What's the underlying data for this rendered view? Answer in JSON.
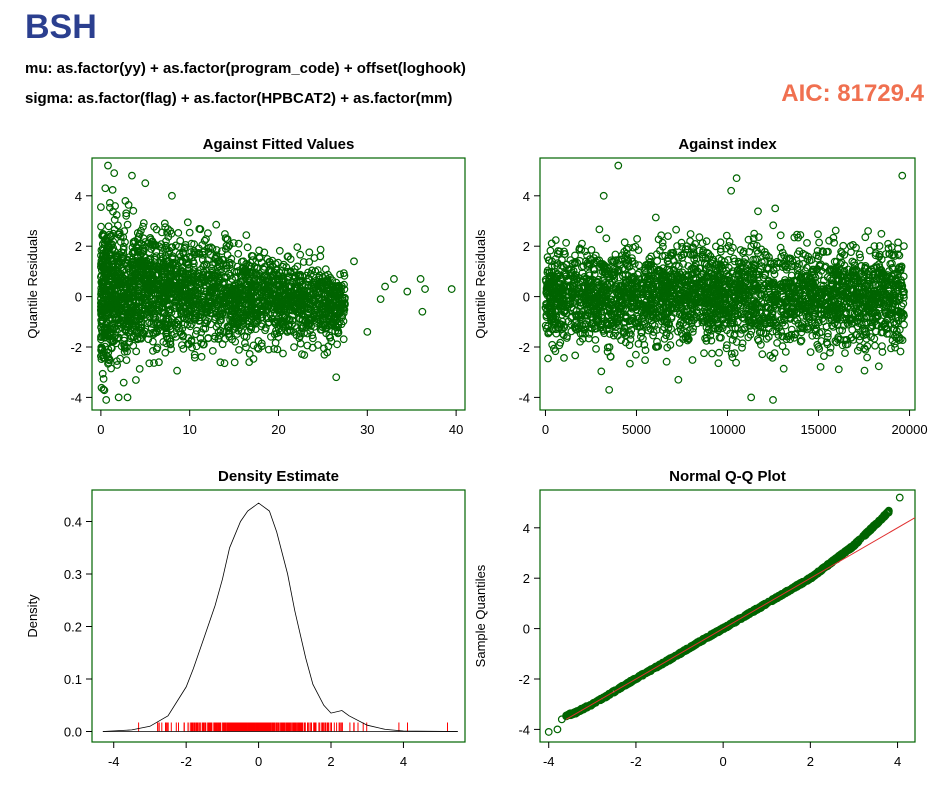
{
  "header": {
    "title": "BSH",
    "mu_formula": "mu: as.factor(yy) + as.factor(program_code) + offset(loghook)",
    "sigma_formula": "sigma: as.factor(flag) + as.factor(HPBCAT2) + as.factor(mm)",
    "aic_label": "AIC: 81729.4"
  },
  "colors": {
    "points": "#006400",
    "rug": "#ff0000",
    "qqline": "#e03030",
    "frame": "#006400",
    "title": "#2b3f8f",
    "aic": "#f07050"
  },
  "chart_data": [
    {
      "type": "scatter",
      "title": "Against Fitted Values",
      "xlabel": "",
      "ylabel": "Quantile Residuals",
      "xlim": [
        -1,
        41
      ],
      "ylim": [
        -4.5,
        5.5
      ],
      "xticks": [
        "0",
        "10",
        "20",
        "30",
        "40"
      ],
      "yticks": [
        "-4",
        "-2",
        "0",
        "2",
        "4"
      ],
      "points_sample": [
        [
          0.8,
          5.2
        ],
        [
          1.5,
          4.9
        ],
        [
          3.5,
          4.8
        ],
        [
          5.0,
          4.5
        ],
        [
          0.5,
          4.3
        ],
        [
          8.0,
          4.0
        ],
        [
          2.0,
          -4.0
        ],
        [
          0.6,
          -4.1
        ],
        [
          3.0,
          -4.0
        ],
        [
          26.5,
          -3.2
        ],
        [
          28.5,
          1.4
        ],
        [
          30.0,
          -1.4
        ],
        [
          31.5,
          -0.1
        ],
        [
          32.0,
          0.4
        ],
        [
          33.0,
          0.7
        ],
        [
          34.5,
          0.2
        ],
        [
          36.0,
          0.7
        ],
        [
          36.2,
          -0.6
        ],
        [
          36.5,
          0.3
        ],
        [
          39.5,
          0.3
        ]
      ],
      "cloud_envelope": {
        "x": [
          0,
          1,
          2,
          3,
          4,
          5,
          6,
          8,
          10,
          12,
          14,
          16,
          18,
          20,
          22,
          24,
          26,
          27.5
        ],
        "upper": [
          3.0,
          3.7,
          3.5,
          3.1,
          2.9,
          2.8,
          3.0,
          2.7,
          2.6,
          2.4,
          2.1,
          2.0,
          1.9,
          1.8,
          1.6,
          1.5,
          1.3,
          1.0
        ],
        "lower": [
          -3.0,
          -3.3,
          -3.1,
          -2.9,
          -2.7,
          -2.6,
          -2.5,
          -2.4,
          -2.2,
          -2.1,
          -2.1,
          -2.0,
          -2.0,
          -2.0,
          -2.0,
          -2.1,
          -2.0,
          -1.8
        ]
      }
    },
    {
      "type": "scatter",
      "title": "Against  index",
      "xlabel": "",
      "ylabel": "Quantile Residuals",
      "xlim": [
        -300,
        20300
      ],
      "ylim": [
        -4.5,
        5.5
      ],
      "xticks": [
        "0",
        "5000",
        "10000",
        "15000",
        "20000"
      ],
      "yticks": [
        "-4",
        "-2",
        "0",
        "2",
        "4"
      ],
      "points_sample": [
        [
          4000,
          5.2
        ],
        [
          19600,
          4.8
        ],
        [
          10500,
          4.7
        ],
        [
          12500,
          -4.1
        ],
        [
          11300,
          -4.0
        ],
        [
          3200,
          4.0
        ],
        [
          3500,
          -3.7
        ],
        [
          7300,
          -3.3
        ],
        [
          10200,
          4.2
        ]
      ],
      "cloud_envelope": {
        "x": [
          0,
          19700
        ],
        "upper": 2.6,
        "lower": -2.6
      }
    },
    {
      "type": "line",
      "title": "Density Estimate",
      "xlabel": "",
      "ylabel": "Density",
      "xlim": [
        -4.6,
        5.7
      ],
      "ylim": [
        -0.02,
        0.46
      ],
      "xticks": [
        "-4",
        "-2",
        "0",
        "2",
        "4"
      ],
      "yticks": [
        "0.0",
        "0.1",
        "0.2",
        "0.3",
        "0.4"
      ],
      "x": [
        -4.3,
        -3.5,
        -3.0,
        -2.5,
        -2.0,
        -1.8,
        -1.5,
        -1.2,
        -1.0,
        -0.8,
        -0.5,
        -0.3,
        0.0,
        0.3,
        0.5,
        0.8,
        1.0,
        1.3,
        1.5,
        1.8,
        2.0,
        2.3,
        2.5,
        3.0,
        3.5,
        4.0,
        5.5
      ],
      "y": [
        0.0,
        0.003,
        0.01,
        0.03,
        0.085,
        0.12,
        0.18,
        0.24,
        0.29,
        0.35,
        0.4,
        0.42,
        0.435,
        0.42,
        0.38,
        0.3,
        0.23,
        0.14,
        0.09,
        0.05,
        0.035,
        0.04,
        0.03,
        0.012,
        0.004,
        0.001,
        0.0
      ],
      "rug": {
        "range": [
          -4.2,
          5.3
        ],
        "color": "#ff0000"
      }
    },
    {
      "type": "scatter",
      "title": "Normal Q-Q Plot",
      "xlabel": "",
      "ylabel": "Sample Quantiles",
      "xlim": [
        -4.2,
        4.4
      ],
      "ylim": [
        -4.5,
        5.5
      ],
      "xticks": [
        "-4",
        "-2",
        "0",
        "2",
        "4"
      ],
      "yticks": [
        "-4",
        "-2",
        "0",
        "2",
        "4"
      ],
      "points": [
        [
          -4.0,
          -4.1
        ],
        [
          -3.8,
          -4.0
        ],
        [
          -3.7,
          -3.6
        ],
        [
          -3.6,
          -3.45
        ],
        [
          -3.4,
          -3.35
        ],
        [
          -3.0,
          -3.0
        ],
        [
          -2.5,
          -2.5
        ],
        [
          -2.0,
          -1.98
        ],
        [
          -1.5,
          -1.5
        ],
        [
          -1.0,
          -1.0
        ],
        [
          -0.5,
          -0.48
        ],
        [
          0.0,
          0.0
        ],
        [
          0.5,
          0.5
        ],
        [
          1.0,
          1.0
        ],
        [
          1.5,
          1.5
        ],
        [
          2.0,
          2.0
        ],
        [
          2.5,
          2.65
        ],
        [
          3.0,
          3.3
        ],
        [
          3.3,
          3.8
        ],
        [
          3.6,
          4.3
        ],
        [
          3.8,
          4.65
        ],
        [
          4.05,
          5.2
        ]
      ],
      "reference_line": {
        "intercept": 0.0,
        "slope": 1.0,
        "x_range": [
          -3.6,
          4.4
        ]
      }
    }
  ]
}
